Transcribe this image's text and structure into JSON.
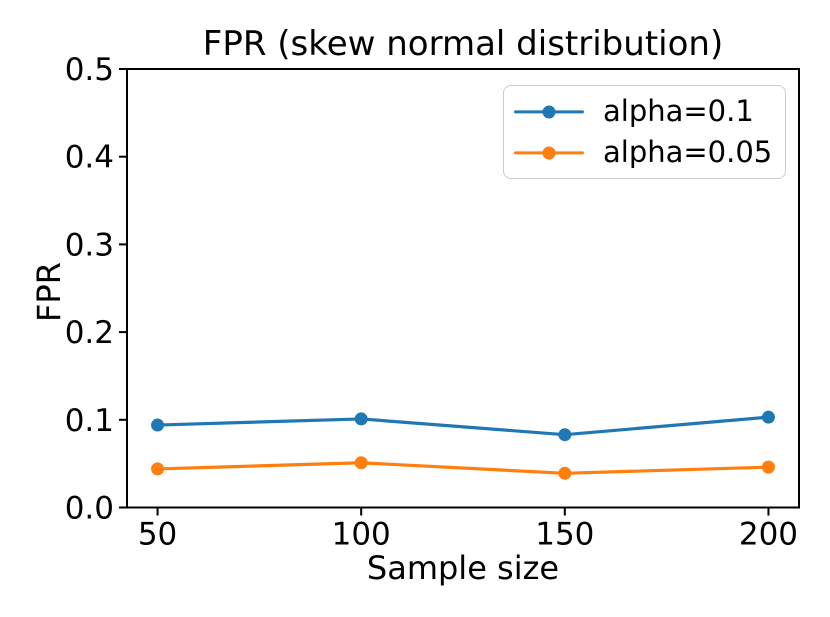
{
  "figure": {
    "background_color": "#ffffff",
    "text_color": "#000000",
    "axis_color": "#000000",
    "legend_border_color": "#cccccc"
  },
  "chart_data": {
    "type": "line",
    "title": "FPR (skew normal distribution)",
    "xlabel": "Sample size",
    "ylabel": "FPR",
    "x": [
      50,
      100,
      150,
      200
    ],
    "series": [
      {
        "name": "alpha=0.1",
        "color": "#1f77b4",
        "marker": "circle",
        "values": [
          0.094,
          0.101,
          0.083,
          0.103
        ]
      },
      {
        "name": "alpha=0.05",
        "color": "#ff7f0e",
        "marker": "circle",
        "values": [
          0.044,
          0.051,
          0.039,
          0.046
        ]
      }
    ],
    "xlim": [
      42.5,
      207.5
    ],
    "ylim": [
      0,
      0.5
    ],
    "xticks": [
      50,
      100,
      150,
      200
    ],
    "xtick_labels": [
      "50",
      "100",
      "150",
      "200"
    ],
    "yticks": [
      0.0,
      0.1,
      0.2,
      0.3,
      0.4,
      0.5
    ],
    "ytick_labels": [
      "0.0",
      "0.1",
      "0.2",
      "0.3",
      "0.4",
      "0.5"
    ],
    "grid": false,
    "legend_position": "upper right"
  }
}
